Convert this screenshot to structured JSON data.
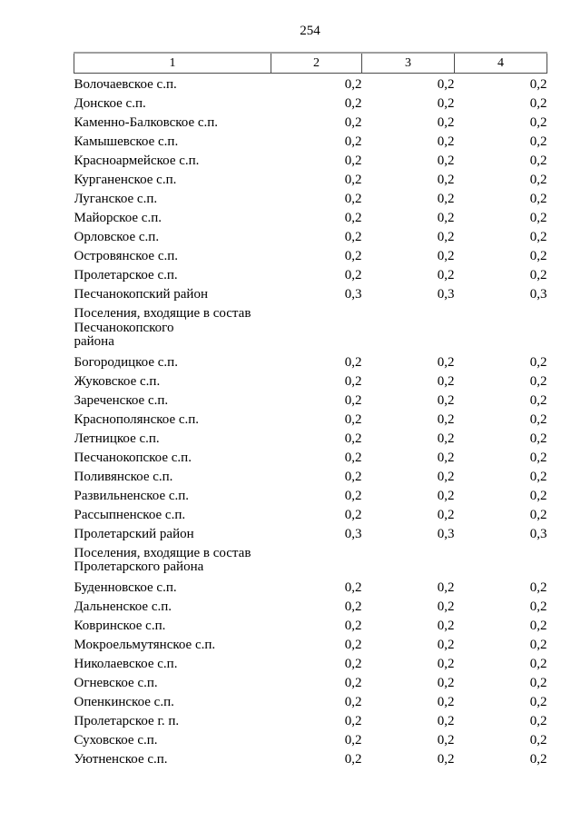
{
  "page": {
    "number": "254"
  },
  "table": {
    "headers": [
      "1",
      "2",
      "3",
      "4"
    ],
    "rows": [
      {
        "name": "Волочаевское с.п.",
        "c2": "0,2",
        "c3": "0,2",
        "c4": "0,2"
      },
      {
        "name": "Донское с.п.",
        "c2": "0,2",
        "c3": "0,2",
        "c4": "0,2"
      },
      {
        "name": "Каменно-Балковское с.п.",
        "c2": "0,2",
        "c3": "0,2",
        "c4": "0,2"
      },
      {
        "name": "Камышевское с.п.",
        "c2": "0,2",
        "c3": "0,2",
        "c4": "0,2"
      },
      {
        "name": "Красноармейское с.п.",
        "c2": "0,2",
        "c3": "0,2",
        "c4": "0,2"
      },
      {
        "name": "Курганенское с.п.",
        "c2": "0,2",
        "c3": "0,2",
        "c4": "0,2"
      },
      {
        "name": "Луганское с.п.",
        "c2": "0,2",
        "c3": "0,2",
        "c4": "0,2"
      },
      {
        "name": "Майорское с.п.",
        "c2": "0,2",
        "c3": "0,2",
        "c4": "0,2"
      },
      {
        "name": "Орловское с.п.",
        "c2": "0,2",
        "c3": "0,2",
        "c4": "0,2"
      },
      {
        "name": "Островянское с.п.",
        "c2": "0,2",
        "c3": "0,2",
        "c4": "0,2"
      },
      {
        "name": "Пролетарское с.п.",
        "c2": "0,2",
        "c3": "0,2",
        "c4": "0,2"
      },
      {
        "name": "Песчанокопский район",
        "c2": "0,3",
        "c3": "0,3",
        "c4": "0,3"
      },
      {
        "name": "Поселения, входящие в состав\nПесчанокопского\nрайона",
        "c2": "",
        "c3": "",
        "c4": ""
      },
      {
        "name": "Богородицкое с.п.",
        "c2": "0,2",
        "c3": "0,2",
        "c4": "0,2"
      },
      {
        "name": "Жуковское с.п.",
        "c2": "0,2",
        "c3": "0,2",
        "c4": "0,2"
      },
      {
        "name": "Зареченское с.п.",
        "c2": "0,2",
        "c3": "0,2",
        "c4": "0,2"
      },
      {
        "name": "Краснополянское с.п.",
        "c2": "0,2",
        "c3": "0,2",
        "c4": "0,2"
      },
      {
        "name": "Летницкое с.п.",
        "c2": "0,2",
        "c3": "0,2",
        "c4": "0,2"
      },
      {
        "name": "Песчанокопское с.п.",
        "c2": "0,2",
        "c3": "0,2",
        "c4": "0,2"
      },
      {
        "name": "Поливянское с.п.",
        "c2": "0,2",
        "c3": "0,2",
        "c4": "0,2"
      },
      {
        "name": "Развильненское с.п.",
        "c2": "0,2",
        "c3": "0,2",
        "c4": "0,2"
      },
      {
        "name": "Рассыпненское с.п.",
        "c2": "0,2",
        "c3": "0,2",
        "c4": "0,2"
      },
      {
        "name": "Пролетарский район",
        "c2": "0,3",
        "c3": "0,3",
        "c4": "0,3"
      },
      {
        "name": "Поселения, входящие в состав\nПролетарского района",
        "c2": "",
        "c3": "",
        "c4": ""
      },
      {
        "name": "Буденновское с.п.",
        "c2": "0,2",
        "c3": "0,2",
        "c4": "0,2"
      },
      {
        "name": "Дальненское с.п.",
        "c2": "0,2",
        "c3": "0,2",
        "c4": "0,2"
      },
      {
        "name": "Ковринское с.п.",
        "c2": "0,2",
        "c3": "0,2",
        "c4": "0,2"
      },
      {
        "name": "Мокроельмутянское с.п.",
        "c2": "0,2",
        "c3": "0,2",
        "c4": "0,2"
      },
      {
        "name": "Николаевское с.п.",
        "c2": "0,2",
        "c3": "0,2",
        "c4": "0,2"
      },
      {
        "name": "Огневское с.п.",
        "c2": "0,2",
        "c3": "0,2",
        "c4": "0,2"
      },
      {
        "name": "Опенкинское с.п.",
        "c2": "0,2",
        "c3": "0,2",
        "c4": "0,2"
      },
      {
        "name": "Пролетарское г. п.",
        "c2": "0,2",
        "c3": "0,2",
        "c4": "0,2"
      },
      {
        "name": "Суховское с.п.",
        "c2": "0,2",
        "c3": "0,2",
        "c4": "0,2"
      },
      {
        "name": "Уютненское с.п.",
        "c2": "0,2",
        "c3": "0,2",
        "c4": "0,2"
      }
    ]
  }
}
